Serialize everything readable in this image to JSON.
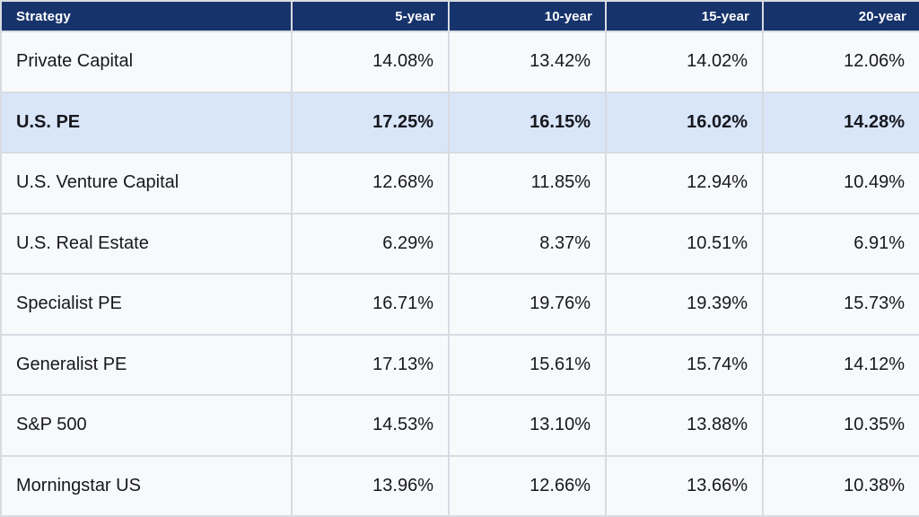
{
  "table": {
    "columns": [
      "Strategy",
      "5-year",
      "10-year",
      "15-year",
      "20-year"
    ],
    "rows": [
      {
        "label": "Private Capital",
        "values": [
          "14.08%",
          "13.42%",
          "14.02%",
          "12.06%"
        ],
        "highlighted": false
      },
      {
        "label": "U.S. PE",
        "values": [
          "17.25%",
          "16.15%",
          "16.02%",
          "14.28%"
        ],
        "highlighted": true
      },
      {
        "label": "U.S. Venture Capital",
        "values": [
          "12.68%",
          "11.85%",
          "12.94%",
          "10.49%"
        ],
        "highlighted": false
      },
      {
        "label": "U.S. Real Estate",
        "values": [
          "6.29%",
          "8.37%",
          "10.51%",
          "6.91%"
        ],
        "highlighted": false
      },
      {
        "label": "Specialist PE",
        "values": [
          "16.71%",
          "19.76%",
          "19.39%",
          "15.73%"
        ],
        "highlighted": false
      },
      {
        "label": "Generalist PE",
        "values": [
          "17.13%",
          "15.61%",
          "15.74%",
          "14.12%"
        ],
        "highlighted": false
      },
      {
        "label": "S&P 500",
        "values": [
          "14.53%",
          "13.10%",
          "13.88%",
          "10.35%"
        ],
        "highlighted": false
      },
      {
        "label": "Morningstar US",
        "values": [
          "13.96%",
          "12.66%",
          "13.66%",
          "10.38%"
        ],
        "highlighted": false
      }
    ]
  },
  "colors": {
    "header_bg": "#17336b",
    "header_text": "#ffffff",
    "row_bg": "#f8f9fb",
    "highlight_bg": "#d9e6fa",
    "border": "#d8dbe2",
    "text": "#16181d"
  },
  "chart_data": {
    "type": "table",
    "row_header": "Strategy",
    "categories": [
      "5-year",
      "10-year",
      "15-year",
      "20-year"
    ],
    "unit": "%",
    "series": [
      {
        "name": "Private Capital",
        "values": [
          14.08,
          13.42,
          14.02,
          12.06
        ]
      },
      {
        "name": "U.S. PE",
        "values": [
          17.25,
          16.15,
          16.02,
          14.28
        ],
        "highlighted": true
      },
      {
        "name": "U.S. Venture Capital",
        "values": [
          12.68,
          11.85,
          12.94,
          10.49
        ]
      },
      {
        "name": "U.S. Real Estate",
        "values": [
          6.29,
          8.37,
          10.51,
          6.91
        ]
      },
      {
        "name": "Specialist PE",
        "values": [
          16.71,
          19.76,
          19.39,
          15.73
        ]
      },
      {
        "name": "Generalist PE",
        "values": [
          17.13,
          15.61,
          15.74,
          14.12
        ]
      },
      {
        "name": "S&P 500",
        "values": [
          14.53,
          13.1,
          13.88,
          10.35
        ]
      },
      {
        "name": "Morningstar US",
        "values": [
          13.96,
          12.66,
          13.66,
          10.38
        ]
      }
    ]
  }
}
